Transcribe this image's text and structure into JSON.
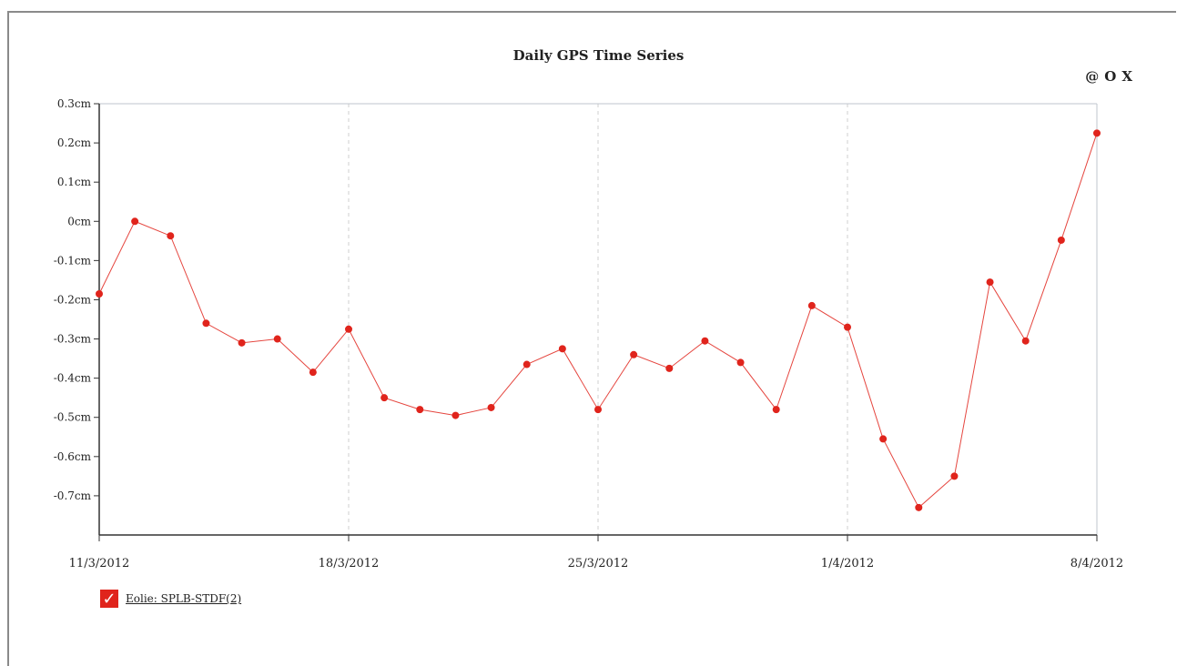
{
  "header": {
    "title": "Daily GPS Time Series",
    "control_symbol": "@",
    "control_o": "O",
    "control_x": "X"
  },
  "chart_data": {
    "type": "line",
    "title": "Daily GPS Time Series",
    "ylim": [
      -0.8,
      0.3
    ],
    "y_ticks": [
      {
        "v": 0.3,
        "label": "0.3cm"
      },
      {
        "v": 0.2,
        "label": "0.2cm"
      },
      {
        "v": 0.1,
        "label": "0.1cm"
      },
      {
        "v": 0.0,
        "label": "0cm"
      },
      {
        "v": -0.1,
        "label": "-0.1cm"
      },
      {
        "v": -0.2,
        "label": "-0.2cm"
      },
      {
        "v": -0.3,
        "label": "-0.3cm"
      },
      {
        "v": -0.4,
        "label": "-0.4cm"
      },
      {
        "v": -0.5,
        "label": "-0.5cm"
      },
      {
        "v": -0.6,
        "label": "-0.6cm"
      },
      {
        "v": -0.7,
        "label": "-0.7cm"
      }
    ],
    "x_start": "11/3/2012",
    "x_end": "8/4/2012",
    "x_ticks": [
      {
        "date": "11/3/2012",
        "label": "11/3/2012"
      },
      {
        "date": "18/3/2012",
        "label": "18/3/2012"
      },
      {
        "date": "25/3/2012",
        "label": "25/3/2012"
      },
      {
        "date": "1/4/2012",
        "label": "1/4/2012"
      },
      {
        "date": "8/4/2012",
        "label": "8/4/2012"
      }
    ],
    "grid": "vertical dashed at x ticks",
    "series": [
      {
        "name": "Eolie: SPLB-STDF(2)",
        "color": "#e0241c",
        "points": [
          {
            "x": "11/3/2012",
            "y": -0.185
          },
          {
            "x": "12/3/2012",
            "y": 0.0
          },
          {
            "x": "13/3/2012",
            "y": -0.037
          },
          {
            "x": "14/3/2012",
            "y": -0.26
          },
          {
            "x": "15/3/2012",
            "y": -0.31
          },
          {
            "x": "16/3/2012",
            "y": -0.3
          },
          {
            "x": "17/3/2012",
            "y": -0.385
          },
          {
            "x": "18/3/2012",
            "y": -0.275
          },
          {
            "x": "19/3/2012",
            "y": -0.45
          },
          {
            "x": "20/3/2012",
            "y": -0.48
          },
          {
            "x": "21/3/2012",
            "y": -0.495
          },
          {
            "x": "22/3/2012",
            "y": -0.475
          },
          {
            "x": "23/3/2012",
            "y": -0.365
          },
          {
            "x": "24/3/2012",
            "y": -0.325
          },
          {
            "x": "25/3/2012",
            "y": -0.48
          },
          {
            "x": "26/3/2012",
            "y": -0.34
          },
          {
            "x": "27/3/2012",
            "y": -0.375
          },
          {
            "x": "28/3/2012",
            "y": -0.305
          },
          {
            "x": "29/3/2012",
            "y": -0.36
          },
          {
            "x": "30/3/2012",
            "y": -0.48
          },
          {
            "x": "31/3/2012",
            "y": -0.215
          },
          {
            "x": "1/4/2012",
            "y": -0.27
          },
          {
            "x": "2/4/2012",
            "y": -0.555
          },
          {
            "x": "3/4/2012",
            "y": -0.73
          },
          {
            "x": "4/4/2012",
            "y": -0.65
          },
          {
            "x": "5/4/2012",
            "y": -0.155
          },
          {
            "x": "6/4/2012",
            "y": -0.305
          },
          {
            "x": "7/4/2012",
            "y": -0.048
          },
          {
            "x": "8/4/2012",
            "y": 0.225
          }
        ]
      }
    ]
  },
  "legend": {
    "checkbox_glyph": "✓",
    "label": "Eolie: SPLB-STDF(2)"
  }
}
